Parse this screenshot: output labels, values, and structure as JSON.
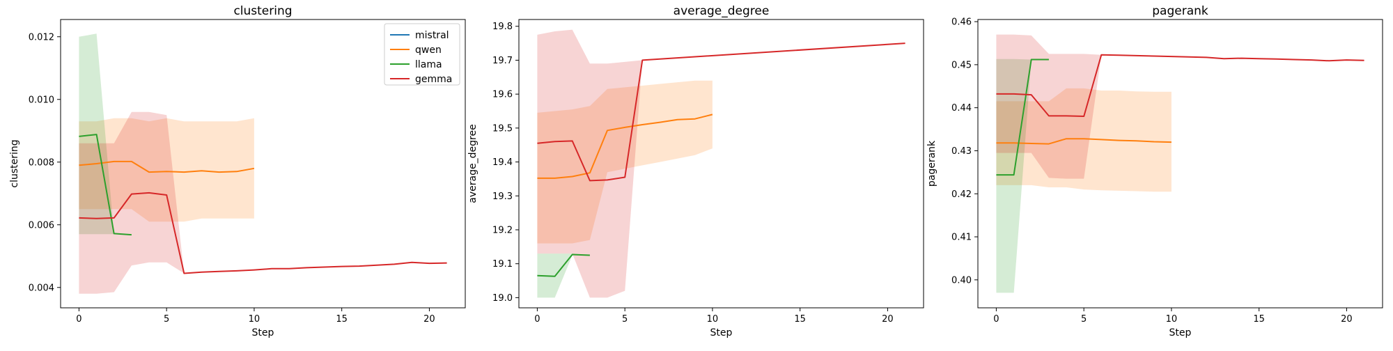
{
  "colors": {
    "mistral": "#1f77b4",
    "qwen": "#ff7f0e",
    "llama": "#2ca02c",
    "gemma": "#d62728"
  },
  "legend": {
    "placement": "upper-right of first panel",
    "entries": [
      "mistral",
      "qwen",
      "llama",
      "gemma"
    ]
  },
  "chart_data": [
    {
      "type": "line",
      "title": "clustering",
      "xlabel": "Step",
      "ylabel": "clustering",
      "xlim": [
        -1.05,
        22.05
      ],
      "ylim": [
        0.00335,
        0.01255
      ],
      "xticks": [
        0,
        5,
        10,
        15,
        20
      ],
      "xtick_labels": [
        "0",
        "5",
        "10",
        "15",
        "20"
      ],
      "yticks": [
        0.004,
        0.006,
        0.008,
        0.01,
        0.012
      ],
      "ytick_labels": [
        "0.004",
        "0.006",
        "0.008",
        "0.010",
        "0.012"
      ],
      "series": [
        {
          "name": "mistral",
          "x": [],
          "y": [],
          "lower": [],
          "upper": []
        },
        {
          "name": "qwen",
          "x": [
            0,
            1,
            2,
            3,
            4,
            5,
            6,
            7,
            8,
            9,
            10
          ],
          "y": [
            0.0079,
            0.00795,
            0.00802,
            0.00802,
            0.00768,
            0.0077,
            0.00768,
            0.00772,
            0.00768,
            0.0077,
            0.0078
          ],
          "lower": [
            0.0065,
            0.0065,
            0.0065,
            0.0065,
            0.0061,
            0.0061,
            0.0061,
            0.0062,
            0.0062,
            0.0062,
            0.0062
          ],
          "upper": [
            0.0093,
            0.0093,
            0.0094,
            0.0094,
            0.0093,
            0.0094,
            0.0093,
            0.0093,
            0.0093,
            0.0093,
            0.0094
          ]
        },
        {
          "name": "llama",
          "x": [
            0,
            1,
            2,
            3
          ],
          "y": [
            0.00882,
            0.00888,
            0.00572,
            0.00568
          ],
          "lower": [
            0.0057,
            0.0057,
            0.0057,
            0.0057
          ],
          "upper": [
            0.012,
            0.0121,
            0.0057,
            0.0057
          ]
        },
        {
          "name": "gemma",
          "x": [
            0,
            1,
            2,
            3,
            4,
            5,
            6,
            7,
            8,
            9,
            10,
            11,
            12,
            13,
            14,
            15,
            16,
            17,
            18,
            19,
            20,
            21
          ],
          "y": [
            0.00622,
            0.0062,
            0.00622,
            0.00698,
            0.00702,
            0.00695,
            0.00445,
            0.00449,
            0.00451,
            0.00453,
            0.00456,
            0.0046,
            0.0046,
            0.00463,
            0.00465,
            0.00467,
            0.00468,
            0.00471,
            0.00474,
            0.0048,
            0.00477,
            0.00478
          ],
          "lower": [
            0.0038,
            0.0038,
            0.00385,
            0.0047,
            0.0048,
            0.0048,
            0.00445,
            0.00449,
            0.00451,
            0.00453,
            0.00456,
            0.0046,
            0.0046,
            0.00463,
            0.00465,
            0.00467,
            0.00468,
            0.00471,
            0.00474,
            0.0048,
            0.00477,
            0.00478
          ],
          "upper": [
            0.0086,
            0.0086,
            0.0086,
            0.0096,
            0.0096,
            0.0095,
            0.00445,
            0.00449,
            0.00451,
            0.00453,
            0.00456,
            0.0046,
            0.0046,
            0.00463,
            0.00465,
            0.00467,
            0.00468,
            0.00471,
            0.00474,
            0.0048,
            0.00477,
            0.00478
          ]
        }
      ]
    },
    {
      "type": "line",
      "title": "average_degree",
      "xlabel": "Step",
      "ylabel": "average_degree",
      "xlim": [
        -1.05,
        22.05
      ],
      "ylim": [
        18.97,
        19.82
      ],
      "xticks": [
        0,
        5,
        10,
        15,
        20
      ],
      "xtick_labels": [
        "0",
        "5",
        "10",
        "15",
        "20"
      ],
      "yticks": [
        19.0,
        19.1,
        19.2,
        19.3,
        19.4,
        19.5,
        19.6,
        19.7,
        19.8
      ],
      "ytick_labels": [
        "19.0",
        "19.1",
        "19.2",
        "19.3",
        "19.4",
        "19.5",
        "19.6",
        "19.7",
        "19.8"
      ],
      "series": [
        {
          "name": "mistral",
          "x": [],
          "y": [],
          "lower": [],
          "upper": []
        },
        {
          "name": "qwen",
          "x": [
            0,
            1,
            2,
            3,
            4,
            5,
            6,
            7,
            8,
            9,
            10
          ],
          "y": [
            19.352,
            19.352,
            19.357,
            19.368,
            19.493,
            19.502,
            19.51,
            19.517,
            19.525,
            19.527,
            19.54
          ],
          "lower": [
            19.16,
            19.16,
            19.16,
            19.17,
            19.37,
            19.38,
            19.39,
            19.4,
            19.41,
            19.42,
            19.44
          ],
          "upper": [
            19.545,
            19.55,
            19.555,
            19.565,
            19.615,
            19.62,
            19.625,
            19.63,
            19.635,
            19.64,
            19.64
          ]
        },
        {
          "name": "llama",
          "x": [
            0,
            1,
            2,
            3
          ],
          "y": [
            19.065,
            19.063,
            19.127,
            19.125
          ],
          "lower": [
            19.0,
            19.0,
            19.125,
            19.125
          ],
          "upper": [
            19.13,
            19.13,
            19.13,
            19.125
          ]
        },
        {
          "name": "gemma",
          "x": [
            0,
            1,
            2,
            3,
            4,
            5,
            6,
            21
          ],
          "y": [
            19.455,
            19.46,
            19.462,
            19.345,
            19.347,
            19.355,
            19.7,
            19.75
          ],
          "lower": [
            19.13,
            19.13,
            19.13,
            19.0,
            19.0,
            19.02,
            19.7,
            19.75
          ],
          "upper": [
            19.775,
            19.785,
            19.79,
            19.69,
            19.69,
            19.695,
            19.7,
            19.75
          ]
        }
      ]
    },
    {
      "type": "line",
      "title": "pagerank",
      "xlabel": "Step",
      "ylabel": "pagerank",
      "xlim": [
        -1.05,
        22.05
      ],
      "ylim": [
        0.3935,
        0.4605
      ],
      "xticks": [
        0,
        5,
        10,
        15,
        20
      ],
      "xtick_labels": [
        "0",
        "5",
        "10",
        "15",
        "20"
      ],
      "yticks": [
        0.4,
        0.41,
        0.42,
        0.43,
        0.44,
        0.45,
        0.46
      ],
      "ytick_labels": [
        "0.40",
        "0.41",
        "0.42",
        "0.43",
        "0.44",
        "0.45",
        "0.46"
      ],
      "series": [
        {
          "name": "mistral",
          "x": [],
          "y": [],
          "lower": [],
          "upper": []
        },
        {
          "name": "qwen",
          "x": [
            0,
            1,
            2,
            3,
            4,
            5,
            6,
            7,
            8,
            9,
            10
          ],
          "y": [
            0.4318,
            0.4318,
            0.4317,
            0.4316,
            0.4328,
            0.4328,
            0.4326,
            0.4324,
            0.4323,
            0.4321,
            0.432
          ],
          "lower": [
            0.422,
            0.422,
            0.422,
            0.4215,
            0.4215,
            0.421,
            0.4208,
            0.4207,
            0.4206,
            0.4205,
            0.4205
          ],
          "upper": [
            0.4415,
            0.4415,
            0.4415,
            0.4415,
            0.4445,
            0.4445,
            0.444,
            0.444,
            0.4438,
            0.4437,
            0.4437
          ],
          "_note": "qwen drawn"
        },
        {
          "name": "llama",
          "x": [
            0,
            1,
            2,
            3
          ],
          "y": [
            0.4244,
            0.4244,
            0.4512,
            0.4512
          ],
          "lower": [
            0.397,
            0.397,
            0.4512,
            0.4512
          ],
          "upper": [
            0.4513,
            0.4513,
            0.4512,
            0.4512
          ]
        },
        {
          "name": "gemma",
          "x": [
            0,
            1,
            2,
            3,
            4,
            5,
            6,
            7,
            8,
            9,
            10,
            11,
            12,
            13,
            14,
            15,
            16,
            17,
            18,
            19,
            20,
            21
          ],
          "y": [
            0.4432,
            0.4432,
            0.443,
            0.4381,
            0.4381,
            0.438,
            0.4523,
            0.4522,
            0.4521,
            0.452,
            0.4519,
            0.4518,
            0.4517,
            0.4514,
            0.4515,
            0.4514,
            0.4513,
            0.4512,
            0.4511,
            0.4509,
            0.4511,
            0.451
          ],
          "lower": [
            0.4295,
            0.4295,
            0.4295,
            0.4237,
            0.4235,
            0.4235,
            0.4523,
            0.4522,
            0.4521,
            0.452,
            0.4519,
            0.4518,
            0.4517,
            0.4514,
            0.4515,
            0.4514,
            0.4513,
            0.4512,
            0.4511,
            0.4509,
            0.4511,
            0.451
          ],
          "upper": [
            0.457,
            0.457,
            0.4568,
            0.4525,
            0.4525,
            0.4525,
            0.4523,
            0.4522,
            0.4521,
            0.452,
            0.4519,
            0.4518,
            0.4517,
            0.4514,
            0.4515,
            0.4514,
            0.4513,
            0.4512,
            0.4511,
            0.4509,
            0.4511,
            0.451
          ]
        }
      ]
    }
  ]
}
